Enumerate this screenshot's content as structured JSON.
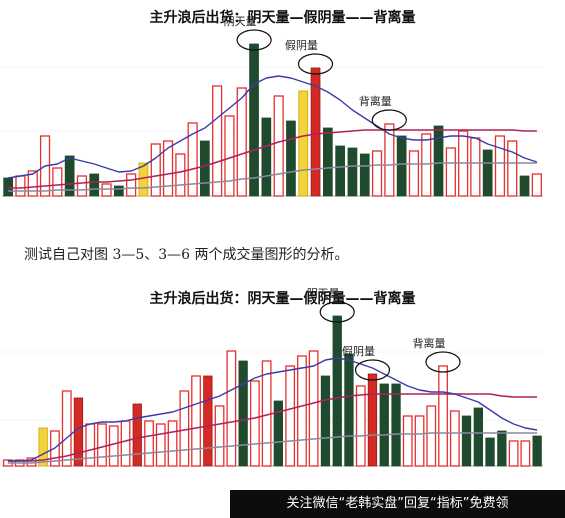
{
  "caption": "测试自己对图 3—5、3—6 两个成交量图形的分析。",
  "watermark": "关注微信“老韩实盘”回复“指标”免费领",
  "colors": {
    "up_outline": "#e53030",
    "down_fill": "#1f4a2e",
    "yellow": "#f3d23b",
    "red_fill": "#d42a26",
    "ma_blue": "#3b3ba8",
    "ma_red": "#b0205a",
    "ma_grey": "#8a8a9a"
  },
  "chart_data": [
    {
      "type": "bar",
      "title": "主升浪后出货：阴天量—假阴量——背离量",
      "annotations": [
        {
          "text": "阴天量",
          "bar_index": 20
        },
        {
          "text": "假阴量",
          "bar_index": 25
        },
        {
          "text": "背离量",
          "bar_index": 31
        }
      ],
      "bars": [
        {
          "v": 18,
          "c": "down"
        },
        {
          "v": 20,
          "c": "up"
        },
        {
          "v": 25,
          "c": "up"
        },
        {
          "v": 60,
          "c": "up"
        },
        {
          "v": 28,
          "c": "up"
        },
        {
          "v": 40,
          "c": "down"
        },
        {
          "v": 20,
          "c": "up"
        },
        {
          "v": 22,
          "c": "down"
        },
        {
          "v": 12,
          "c": "up"
        },
        {
          "v": 10,
          "c": "down"
        },
        {
          "v": 22,
          "c": "up"
        },
        {
          "v": 33,
          "c": "yellow"
        },
        {
          "v": 52,
          "c": "up"
        },
        {
          "v": 55,
          "c": "up"
        },
        {
          "v": 42,
          "c": "up"
        },
        {
          "v": 73,
          "c": "up"
        },
        {
          "v": 55,
          "c": "down"
        },
        {
          "v": 110,
          "c": "up"
        },
        {
          "v": 80,
          "c": "up"
        },
        {
          "v": 108,
          "c": "up"
        },
        {
          "v": 152,
          "c": "down"
        },
        {
          "v": 78,
          "c": "down"
        },
        {
          "v": 100,
          "c": "up"
        },
        {
          "v": 75,
          "c": "down"
        },
        {
          "v": 105,
          "c": "yellow"
        },
        {
          "v": 128,
          "c": "red"
        },
        {
          "v": 68,
          "c": "down"
        },
        {
          "v": 50,
          "c": "down"
        },
        {
          "v": 48,
          "c": "down"
        },
        {
          "v": 42,
          "c": "down"
        },
        {
          "v": 45,
          "c": "up"
        },
        {
          "v": 72,
          "c": "up"
        },
        {
          "v": 60,
          "c": "down"
        },
        {
          "v": 45,
          "c": "up"
        },
        {
          "v": 62,
          "c": "up"
        },
        {
          "v": 70,
          "c": "down"
        },
        {
          "v": 48,
          "c": "up"
        },
        {
          "v": 65,
          "c": "up"
        },
        {
          "v": 58,
          "c": "up"
        },
        {
          "v": 46,
          "c": "down"
        },
        {
          "v": 60,
          "c": "up"
        },
        {
          "v": 55,
          "c": "up"
        },
        {
          "v": 20,
          "c": "down"
        },
        {
          "v": 22,
          "c": "up"
        }
      ],
      "ma_blue": [
        18,
        20,
        22,
        30,
        32,
        38,
        35,
        32,
        28,
        24,
        25,
        30,
        38,
        48,
        55,
        62,
        68,
        78,
        88,
        98,
        112,
        118,
        120,
        118,
        114,
        110,
        104,
        96,
        86,
        78,
        70,
        62,
        58,
        56,
        56,
        58,
        60,
        60,
        58,
        52,
        48,
        44,
        38,
        34
      ],
      "ma_red": [
        8,
        8,
        9,
        10,
        11,
        12,
        13,
        14,
        14,
        15,
        16,
        18,
        20,
        22,
        24,
        27,
        30,
        34,
        38,
        42,
        46,
        50,
        54,
        57,
        60,
        62,
        63,
        64,
        65,
        66,
        66,
        66,
        66,
        66,
        66,
        66,
        66,
        66,
        66,
        66,
        66,
        66,
        65,
        65
      ],
      "ma_grey": [
        5,
        5,
        5,
        5,
        6,
        6,
        6,
        7,
        7,
        7,
        8,
        8,
        9,
        10,
        11,
        12,
        13,
        14,
        15,
        17,
        18,
        20,
        22,
        24,
        26,
        27,
        28,
        29,
        30,
        30,
        31,
        31,
        32,
        32,
        32,
        33,
        33,
        33,
        33,
        33,
        33,
        33,
        33,
        33
      ]
    },
    {
      "type": "bar",
      "title": "主升浪后出货：阴天量—假阴量——背离量",
      "annotations": [
        {
          "text": "阴天量",
          "bar_index": 28
        },
        {
          "text": "假阴量",
          "bar_index": 31
        },
        {
          "text": "背离量",
          "bar_index": 37
        }
      ],
      "bars": [
        {
          "v": 6,
          "c": "up"
        },
        {
          "v": 6,
          "c": "up"
        },
        {
          "v": 8,
          "c": "up"
        },
        {
          "v": 38,
          "c": "yellow"
        },
        {
          "v": 35,
          "c": "up"
        },
        {
          "v": 75,
          "c": "up"
        },
        {
          "v": 68,
          "c": "red"
        },
        {
          "v": 42,
          "c": "up"
        },
        {
          "v": 42,
          "c": "up"
        },
        {
          "v": 40,
          "c": "up"
        },
        {
          "v": 45,
          "c": "up"
        },
        {
          "v": 62,
          "c": "red"
        },
        {
          "v": 45,
          "c": "up"
        },
        {
          "v": 42,
          "c": "up"
        },
        {
          "v": 45,
          "c": "up"
        },
        {
          "v": 75,
          "c": "up"
        },
        {
          "v": 90,
          "c": "up"
        },
        {
          "v": 90,
          "c": "red"
        },
        {
          "v": 60,
          "c": "up"
        },
        {
          "v": 115,
          "c": "up"
        },
        {
          "v": 105,
          "c": "down"
        },
        {
          "v": 85,
          "c": "up"
        },
        {
          "v": 105,
          "c": "up"
        },
        {
          "v": 65,
          "c": "down"
        },
        {
          "v": 100,
          "c": "up"
        },
        {
          "v": 110,
          "c": "up"
        },
        {
          "v": 115,
          "c": "up"
        },
        {
          "v": 90,
          "c": "down"
        },
        {
          "v": 150,
          "c": "down"
        },
        {
          "v": 112,
          "c": "down"
        },
        {
          "v": 80,
          "c": "up"
        },
        {
          "v": 92,
          "c": "red"
        },
        {
          "v": 82,
          "c": "down"
        },
        {
          "v": 82,
          "c": "down"
        },
        {
          "v": 50,
          "c": "up"
        },
        {
          "v": 50,
          "c": "up"
        },
        {
          "v": 60,
          "c": "up"
        },
        {
          "v": 100,
          "c": "up"
        },
        {
          "v": 55,
          "c": "up"
        },
        {
          "v": 50,
          "c": "down"
        },
        {
          "v": 58,
          "c": "down"
        },
        {
          "v": 28,
          "c": "down"
        },
        {
          "v": 35,
          "c": "down"
        },
        {
          "v": 25,
          "c": "up"
        },
        {
          "v": 25,
          "c": "up"
        },
        {
          "v": 30,
          "c": "down"
        }
      ],
      "ma_blue": [
        5,
        5,
        6,
        12,
        18,
        28,
        38,
        42,
        44,
        44,
        45,
        48,
        50,
        52,
        54,
        58,
        62,
        66,
        70,
        76,
        82,
        88,
        92,
        94,
        96,
        98,
        100,
        106,
        108,
        106,
        102,
        98,
        92,
        86,
        80,
        76,
        74,
        74,
        72,
        68,
        64,
        56,
        48,
        42,
        38,
        36
      ],
      "ma_red": [
        5,
        5,
        5,
        6,
        8,
        10,
        13,
        16,
        19,
        22,
        25,
        28,
        30,
        32,
        34,
        36,
        38,
        40,
        42,
        44,
        46,
        48,
        51,
        54,
        57,
        60,
        63,
        66,
        68,
        70,
        71,
        72,
        72,
        72,
        72,
        72,
        72,
        72,
        72,
        72,
        72,
        72,
        70,
        69,
        69,
        69
      ],
      "ma_grey": [
        3,
        3,
        3,
        4,
        5,
        6,
        7,
        8,
        9,
        10,
        11,
        12,
        13,
        14,
        15,
        16,
        17,
        18,
        19,
        20,
        21,
        22,
        23,
        24,
        25,
        26,
        27,
        28,
        29,
        30,
        30,
        31,
        31,
        32,
        32,
        32,
        33,
        33,
        33,
        33,
        33,
        33,
        33,
        33,
        33,
        33
      ]
    }
  ]
}
